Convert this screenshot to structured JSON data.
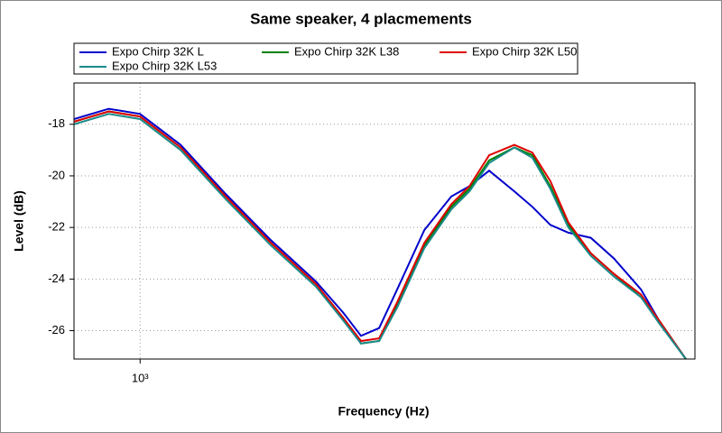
{
  "chart_data": {
    "type": "line",
    "title": "Same speaker, 4 placmements",
    "x_label": "Frequency (Hz)",
    "y_label": "Level (dB)",
    "xscale": "log",
    "grid": true,
    "x": [
      816,
      908,
      1000,
      1133,
      1301,
      1496,
      1718,
      1867,
      1973,
      2086,
      2205,
      2397,
      2605,
      2754,
      2926,
      3162,
      3342,
      3532,
      3733,
      4000,
      4294,
      4667,
      4932,
      5358
    ],
    "series": [
      {
        "name": "Expo Chirp 32K L",
        "color": "#0000cc",
        "values": [
          -17.8,
          -17.4,
          -17.6,
          -18.8,
          -20.7,
          -22.5,
          -24.1,
          -25.3,
          -26.2,
          -25.9,
          -24.4,
          -22.1,
          -20.8,
          -20.4,
          -19.8,
          -20.6,
          -21.2,
          -21.9,
          -22.2,
          -22.4,
          -23.2,
          -24.4,
          -25.6,
          -27.1
        ]
      },
      {
        "name": "Expo Chirp 32K L38",
        "color": "#008000",
        "values": [
          -17.9,
          -17.5,
          -17.7,
          -18.9,
          -20.8,
          -22.6,
          -24.2,
          -25.5,
          -26.5,
          -26.4,
          -25.0,
          -22.7,
          -21.2,
          -20.5,
          -19.4,
          -18.9,
          -19.2,
          -20.4,
          -21.9,
          -23.0,
          -23.8,
          -24.7,
          -25.6,
          -27.1
        ]
      },
      {
        "name": "Expo Chirp 32K L50",
        "color": "#e00000",
        "values": [
          -17.9,
          -17.5,
          -17.7,
          -18.9,
          -20.8,
          -22.6,
          -24.2,
          -25.5,
          -26.4,
          -26.3,
          -24.9,
          -22.6,
          -21.1,
          -20.4,
          -19.2,
          -18.8,
          -19.1,
          -20.2,
          -21.8,
          -23.0,
          -23.8,
          -24.6,
          -25.6,
          -27.1
        ]
      },
      {
        "name": "Expo Chirp 32K L53",
        "color": "#1a8a8a",
        "values": [
          -18.0,
          -17.6,
          -17.8,
          -19.0,
          -20.9,
          -22.7,
          -24.3,
          -25.6,
          -26.5,
          -26.4,
          -25.1,
          -22.8,
          -21.3,
          -20.6,
          -19.5,
          -18.9,
          -19.3,
          -20.5,
          -22.0,
          -23.1,
          -23.9,
          -24.7,
          -25.7,
          -27.1
        ]
      }
    ],
    "xlim": [
      816,
      5510
    ],
    "xticks": [
      {
        "value": 1000,
        "label": "10³"
      }
    ],
    "ylim": [
      -27.1,
      -16.4
    ],
    "yticks": [
      -26,
      -24,
      -22,
      -20,
      -18
    ]
  }
}
